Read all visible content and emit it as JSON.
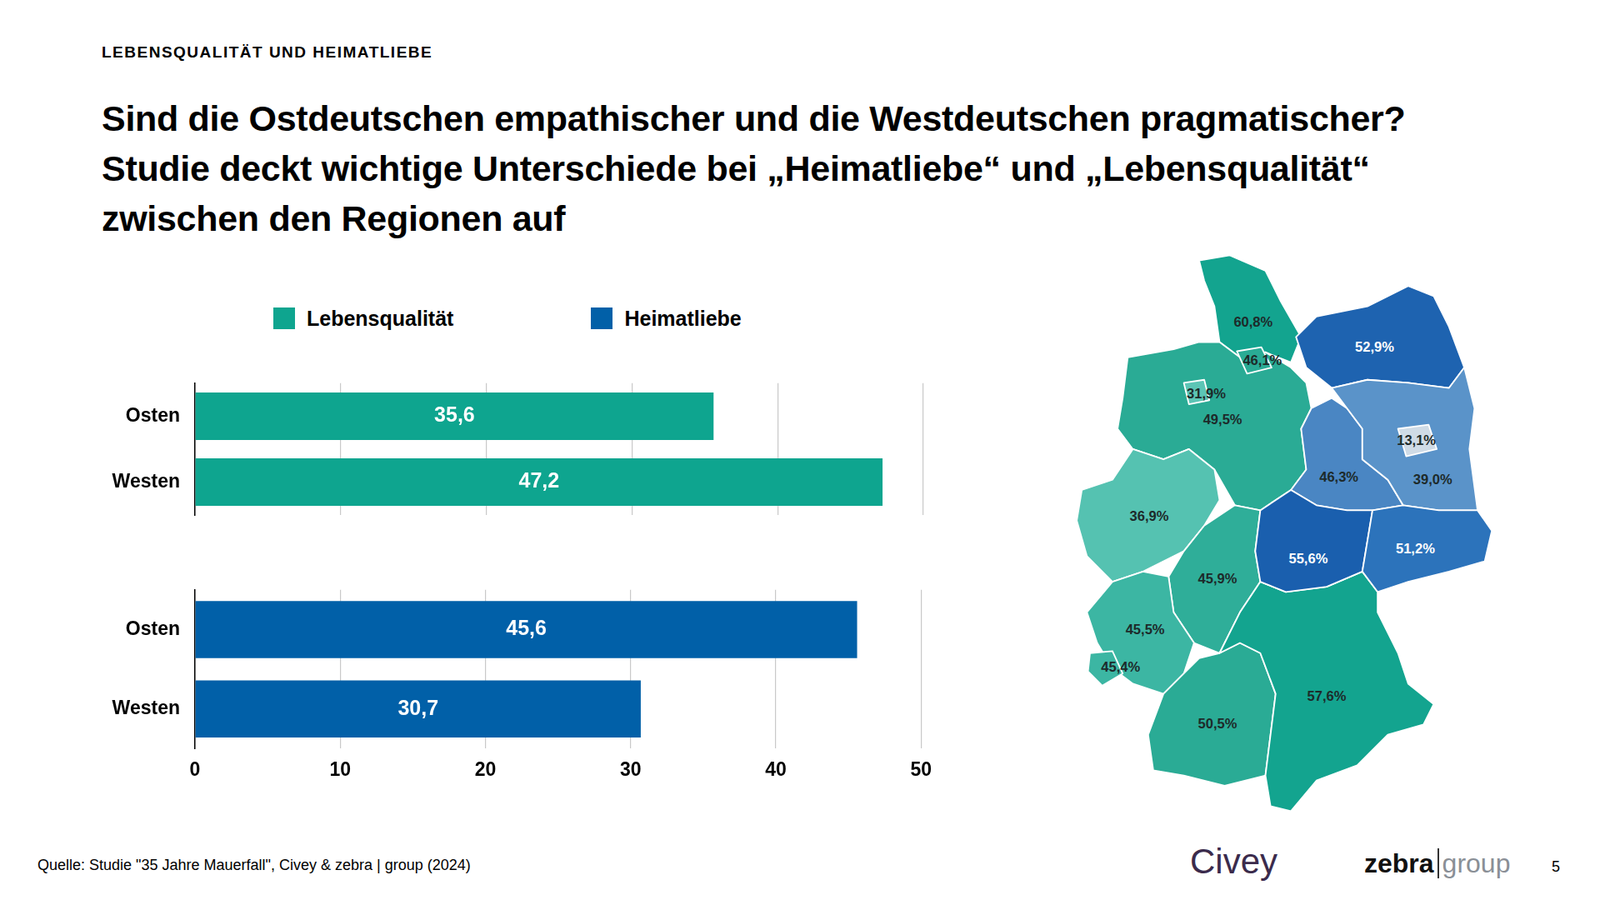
{
  "header": {
    "kicker": "LEBENSQUALITÄT UND HEIMATLIEBE",
    "title": "Sind die Ostdeutschen empathischer und die Westdeutschen pragmatischer? Studie deckt wichtige Unterschiede bei „Heimatliebe“ und „Lebensqualität“ zwischen den Regionen auf"
  },
  "chart_data": [
    {
      "type": "bar",
      "orientation": "horizontal",
      "categories": [
        "Osten",
        "Westen"
      ],
      "series": [
        {
          "name": "Lebensqualität",
          "color": "#0ea58f",
          "values": [
            35.6,
            47.2
          ],
          "value_labels": [
            "35,6",
            "47,2"
          ]
        }
      ],
      "data_labels": true,
      "xlim": [
        0,
        50
      ],
      "xticks": [
        0,
        10,
        20,
        30,
        40,
        50
      ],
      "grid": true,
      "legend": "top",
      "tick_labels": "y"
    },
    {
      "type": "bar",
      "orientation": "horizontal",
      "categories": [
        "Osten",
        "Westen"
      ],
      "series": [
        {
          "name": "Heimatliebe",
          "color": "#0160a8",
          "values": [
            45.6,
            30.7
          ],
          "value_labels": [
            "45,6",
            "30,7"
          ]
        }
      ],
      "data_labels": true,
      "xlim": [
        0,
        50
      ],
      "xticks": [
        0,
        10,
        20,
        30,
        40,
        50
      ],
      "grid": true,
      "legend": "top",
      "tick_labels": true
    }
  ],
  "map": {
    "regions": [
      {
        "value": 60.8,
        "label": "60,8%",
        "color": "#13a48f"
      },
      {
        "value": 49.5,
        "label": "49,5%",
        "color": "#2aab95"
      },
      {
        "value": 31.9,
        "label": "31,9%",
        "color": "#5cc5b5"
      },
      {
        "value": 46.1,
        "label": "46,1%",
        "color": "#2aab95"
      },
      {
        "value": 52.9,
        "label": "52,9%",
        "color": "#1e63b0"
      },
      {
        "value": 36.9,
        "label": "36,9%",
        "color": "#55c2b1"
      },
      {
        "value": 45.9,
        "label": "45,9%",
        "color": "#2fae99"
      },
      {
        "value": 45.5,
        "label": "45,5%",
        "color": "#3cb6a3"
      },
      {
        "value": 45.4,
        "label": "45,4%",
        "color": "#3cb6a3"
      },
      {
        "value": 50.5,
        "label": "50,5%",
        "color": "#2aab95"
      },
      {
        "value": 57.6,
        "label": "57,6%",
        "color": "#13a48f"
      },
      {
        "value": 46.3,
        "label": "46,3%",
        "color": "#4a86c3"
      },
      {
        "value": 39.0,
        "label": "39,0%",
        "color": "#5a93c9"
      },
      {
        "value": 13.1,
        "label": "13,1%",
        "color": "#cfdbe6"
      },
      {
        "value": 55.6,
        "label": "55,6%",
        "color": "#1a5fae"
      },
      {
        "value": 51.2,
        "label": "51,2%",
        "color": "#2c73bb"
      }
    ]
  },
  "footer": {
    "source": "Quelle: Studie \"35 Jahre Mauerfall\", Civey & zebra | group (2024)",
    "logos": [
      "Civey",
      "zebra",
      "group"
    ],
    "page": "5"
  }
}
